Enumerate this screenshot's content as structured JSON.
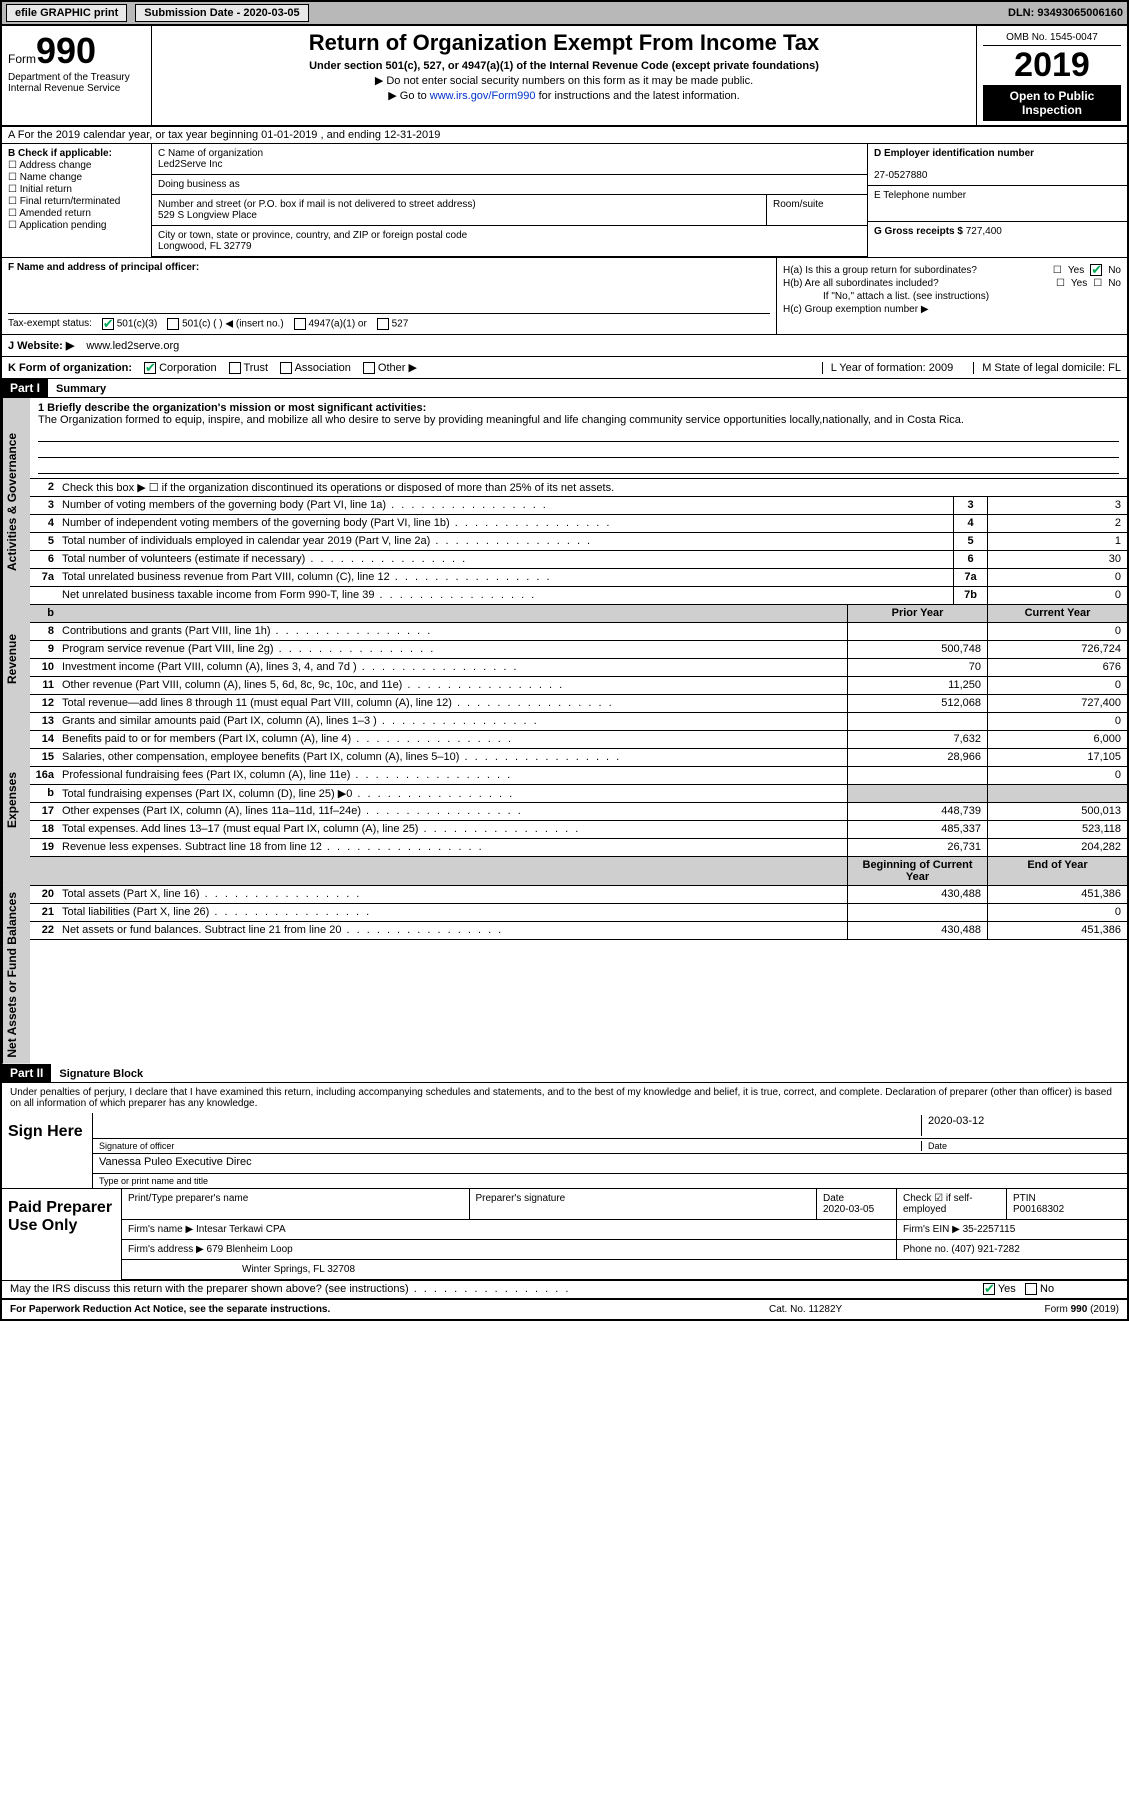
{
  "topbar": {
    "efile": "efile GRAPHIC print",
    "subdate_label": "Submission Date - ",
    "subdate_value": "2020-03-05",
    "dln": "DLN: 93493065006160"
  },
  "header": {
    "form_label": "Form",
    "form_num": "990",
    "dept": "Department of the Treasury\nInternal Revenue Service",
    "title": "Return of Organization Exempt From Income Tax",
    "sub1": "Under section 501(c), 527, or 4947(a)(1) of the Internal Revenue Code (except private foundations)",
    "sub2": "▶ Do not enter social security numbers on this form as it may be made public.",
    "sub3_pre": "▶ Go to ",
    "sub3_link": "www.irs.gov/Form990",
    "sub3_post": " for instructions and the latest information.",
    "omb": "OMB No. 1545-0047",
    "year": "2019",
    "otp": "Open to Public Inspection"
  },
  "rowA": "A For the 2019 calendar year, or tax year beginning 01-01-2019   , and ending 12-31-2019",
  "colB": {
    "label": "B Check if applicable:",
    "opts": [
      "Address change",
      "Name change",
      "Initial return",
      "Final return/terminated",
      "Amended return",
      "Application pending"
    ]
  },
  "colC": {
    "name_label": "C Name of organization",
    "name": "Led2Serve Inc",
    "dba_label": "Doing business as",
    "dba": "",
    "street_label": "Number and street (or P.O. box if mail is not delivered to street address)",
    "street": "529 S Longview Place",
    "room_label": "Room/suite",
    "city_label": "City or town, state or province, country, and ZIP or foreign postal code",
    "city": "Longwood, FL  32779"
  },
  "colD": {
    "ein_label": "D Employer identification number",
    "ein": "27-0527880",
    "phone_label": "E Telephone number",
    "gross_label": "G Gross receipts $ ",
    "gross": "727,400"
  },
  "rowF": {
    "label": "F  Name and address of principal officer:"
  },
  "rowH": {
    "ha": "H(a)  Is this a group return for subordinates?",
    "hb": "H(b)  Are all subordinates included?",
    "hb_note": "If \"No,\" attach a list. (see instructions)",
    "hc": "H(c)  Group exemption number ▶",
    "yes": "Yes",
    "no": "No",
    "ha_checked": "No"
  },
  "rowI": {
    "label": "Tax-exempt status:",
    "opts": [
      "501(c)(3)",
      "501(c) (  ) ◀ (insert no.)",
      "4947(a)(1) or",
      "527"
    ],
    "checked_idx": 0
  },
  "rowJ": {
    "label": "J Website: ▶",
    "value": "www.led2serve.org"
  },
  "rowK": {
    "label": "K Form of organization:",
    "opts": [
      "Corporation",
      "Trust",
      "Association",
      "Other ▶"
    ],
    "checked_idx": 0,
    "L": "L Year of formation: 2009",
    "M": "M State of legal domicile: FL"
  },
  "part1": {
    "bar": "Part I",
    "title": "Summary",
    "mission_label": "1  Briefly describe the organization's mission or most significant activities:",
    "mission": "The Organization formed to equip, inspire, and mobilize all who desire to serve by providing meaningful and life changing community service opportunities locally,nationally, and in Costa Rica.",
    "line2": "Check this box ▶ ☐  if the organization discontinued its operations or disposed of more than 25% of its net assets."
  },
  "sections": [
    {
      "side": "Activities & Governance",
      "rows": [
        {
          "n": "3",
          "d": "Number of voting members of the governing body (Part VI, line 1a)",
          "cn": "3",
          "v2": "3"
        },
        {
          "n": "4",
          "d": "Number of independent voting members of the governing body (Part VI, line 1b)",
          "cn": "4",
          "v2": "2"
        },
        {
          "n": "5",
          "d": "Total number of individuals employed in calendar year 2019 (Part V, line 2a)",
          "cn": "5",
          "v2": "1"
        },
        {
          "n": "6",
          "d": "Total number of volunteers (estimate if necessary)",
          "cn": "6",
          "v2": "30"
        },
        {
          "n": "7a",
          "d": "Total unrelated business revenue from Part VIII, column (C), line 12",
          "cn": "7a",
          "v2": "0"
        },
        {
          "n": "",
          "d": "Net unrelated business taxable income from Form 990-T, line 39",
          "cn": "7b",
          "v2": "0"
        }
      ],
      "header": {
        "c1": "Prior Year",
        "c2": "Current Year"
      }
    },
    {
      "side": "Revenue",
      "rows": [
        {
          "n": "8",
          "d": "Contributions and grants (Part VIII, line 1h)",
          "v1": "",
          "v2": "0"
        },
        {
          "n": "9",
          "d": "Program service revenue (Part VIII, line 2g)",
          "v1": "500,748",
          "v2": "726,724"
        },
        {
          "n": "10",
          "d": "Investment income (Part VIII, column (A), lines 3, 4, and 7d )",
          "v1": "70",
          "v2": "676"
        },
        {
          "n": "11",
          "d": "Other revenue (Part VIII, column (A), lines 5, 6d, 8c, 9c, 10c, and 11e)",
          "v1": "11,250",
          "v2": "0"
        },
        {
          "n": "12",
          "d": "Total revenue—add lines 8 through 11 (must equal Part VIII, column (A), line 12)",
          "v1": "512,068",
          "v2": "727,400"
        }
      ]
    },
    {
      "side": "Expenses",
      "rows": [
        {
          "n": "13",
          "d": "Grants and similar amounts paid (Part IX, column (A), lines 1–3 )",
          "v1": "",
          "v2": "0"
        },
        {
          "n": "14",
          "d": "Benefits paid to or for members (Part IX, column (A), line 4)",
          "v1": "7,632",
          "v2": "6,000"
        },
        {
          "n": "15",
          "d": "Salaries, other compensation, employee benefits (Part IX, column (A), lines 5–10)",
          "v1": "28,966",
          "v2": "17,105"
        },
        {
          "n": "16a",
          "d": "Professional fundraising fees (Part IX, column (A), line 11e)",
          "v1": "",
          "v2": "0"
        },
        {
          "n": "b",
          "d": "Total fundraising expenses (Part IX, column (D), line 25) ▶0",
          "v1gray": true,
          "v2gray": true
        },
        {
          "n": "17",
          "d": "Other expenses (Part IX, column (A), lines 11a–11d, 11f–24e)",
          "v1": "448,739",
          "v2": "500,013"
        },
        {
          "n": "18",
          "d": "Total expenses. Add lines 13–17 (must equal Part IX, column (A), line 25)",
          "v1": "485,337",
          "v2": "523,118"
        },
        {
          "n": "19",
          "d": "Revenue less expenses. Subtract line 18 from line 12",
          "v1": "26,731",
          "v2": "204,282"
        }
      ],
      "header2": {
        "c1": "Beginning of Current Year",
        "c2": "End of Year"
      }
    },
    {
      "side": "Net Assets or Fund Balances",
      "rows": [
        {
          "n": "20",
          "d": "Total assets (Part X, line 16)",
          "v1": "430,488",
          "v2": "451,386"
        },
        {
          "n": "21",
          "d": "Total liabilities (Part X, line 26)",
          "v1": "",
          "v2": "0"
        },
        {
          "n": "22",
          "d": "Net assets or fund balances. Subtract line 21 from line 20",
          "v1": "430,488",
          "v2": "451,386"
        }
      ]
    }
  ],
  "part2": {
    "bar": "Part II",
    "title": "Signature Block",
    "decl": "Under penalties of perjury, I declare that I have examined this return, including accompanying schedules and statements, and to the best of my knowledge and belief, it is true, correct, and complete. Declaration of preparer (other than officer) is based on all information of which preparer has any knowledge."
  },
  "sign": {
    "label": "Sign Here",
    "sig_label": "Signature of officer",
    "date": "2020-03-12",
    "date_label": "Date",
    "name": "Vanessa Puleo  Executive Direc",
    "name_label": "Type or print name and title"
  },
  "prep": {
    "label": "Paid Preparer Use Only",
    "r1": {
      "c1": "Print/Type preparer's name",
      "c2": "Preparer's signature",
      "c3": "Date",
      "c3v": "2020-03-05",
      "c4": "Check ☑ if self-employed",
      "c5": "PTIN",
      "c5v": "P00168302"
    },
    "r2": {
      "c1": "Firm's name    ▶",
      "c1v": "Intesar Terkawi CPA",
      "c2": "Firm's EIN ▶",
      "c2v": "35-2257115"
    },
    "r3": {
      "c1": "Firm's address ▶",
      "c1v": "679 Blenheim Loop",
      "c2": "Phone no.",
      "c2v": "(407) 921-7282"
    },
    "r4": "Winter Springs, FL  32708",
    "discuss": "May the IRS discuss this return with the preparer shown above? (see instructions)",
    "discuss_yes": true
  },
  "footer": {
    "left": "For Paperwork Reduction Act Notice, see the separate instructions.",
    "mid": "Cat. No. 11282Y",
    "right": "Form 990 (2019)"
  }
}
